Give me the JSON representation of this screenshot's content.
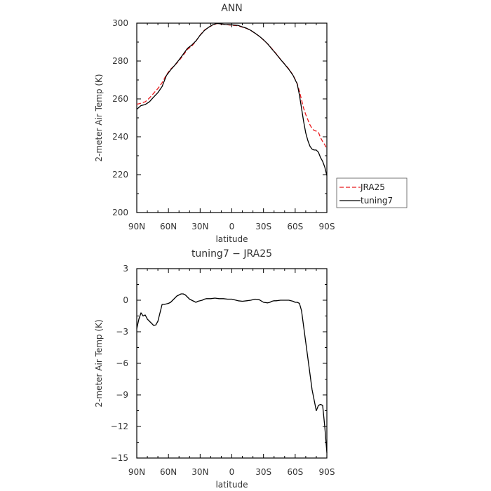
{
  "chart_data": [
    {
      "type": "line",
      "title": "ANN",
      "xlabel": "latitude",
      "ylabel": "2-meter Air Temp (K)",
      "xlim": [
        90,
        -90
      ],
      "ylim": [
        200,
        300
      ],
      "x_ticks": [
        90,
        60,
        30,
        0,
        -30,
        -60,
        -90
      ],
      "x_tick_labels": [
        "90N",
        "60N",
        "30N",
        "0",
        "30S",
        "60S",
        "90S"
      ],
      "y_ticks": [
        200,
        220,
        240,
        260,
        280,
        300
      ],
      "y_tick_labels": [
        "200",
        "220",
        "240",
        "260",
        "280",
        "300"
      ],
      "legend_position": "right",
      "series": [
        {
          "name": "JRA25",
          "color": "#e8191c",
          "dash": "dashed",
          "x": [
            90,
            86,
            82,
            78,
            74,
            70,
            66,
            62,
            58,
            54,
            50,
            46,
            42,
            38,
            34,
            30,
            26,
            22,
            18,
            14,
            10,
            6,
            2,
            -2,
            -6,
            -10,
            -14,
            -18,
            -22,
            -26,
            -30,
            -34,
            -38,
            -42,
            -46,
            -50,
            -54,
            -58,
            -62,
            -64,
            -66,
            -68,
            -70,
            -72,
            -74,
            -76,
            -78,
            -80,
            -82,
            -84,
            -86,
            -88,
            -90
          ],
          "values": [
            257.2,
            257.7,
            258.5,
            260.5,
            263.0,
            265.5,
            268.5,
            272.7,
            275.7,
            277.7,
            280.2,
            283.0,
            286.2,
            287.8,
            290.5,
            293.7,
            296.3,
            297.8,
            299.0,
            299.8,
            299.5,
            299.3,
            299.0,
            298.8,
            298.6,
            297.9,
            297.2,
            296.1,
            294.7,
            293.1,
            291.1,
            289.0,
            286.5,
            283.9,
            281.0,
            278.4,
            275.8,
            272.6,
            268.0,
            264.0,
            259.5,
            255.0,
            251.7,
            249.0,
            246.3,
            244.4,
            243.3,
            243.0,
            242.3,
            239.5,
            237.5,
            235.8,
            233.6
          ]
        },
        {
          "name": "tuning7",
          "color": "#000000",
          "dash": "solid",
          "x": [
            90,
            86,
            82,
            78,
            74,
            70,
            66,
            62,
            58,
            54,
            50,
            46,
            42,
            38,
            34,
            30,
            26,
            22,
            18,
            14,
            10,
            6,
            2,
            -2,
            -6,
            -10,
            -14,
            -18,
            -22,
            -26,
            -30,
            -34,
            -38,
            -42,
            -46,
            -50,
            -54,
            -58,
            -62,
            -64,
            -66,
            -68,
            -70,
            -72,
            -74,
            -76,
            -78,
            -80,
            -82,
            -84,
            -86,
            -88,
            -90
          ],
          "values": [
            254.5,
            256.5,
            257.0,
            258.5,
            261.0,
            263.3,
            266.5,
            272.3,
            275.3,
            277.8,
            280.6,
            283.6,
            286.7,
            288.4,
            290.6,
            293.6,
            296.1,
            297.8,
            299.2,
            299.9,
            299.6,
            299.3,
            299.2,
            299.0,
            298.8,
            298.0,
            297.3,
            296.2,
            294.7,
            293.1,
            291.2,
            289.0,
            286.3,
            283.7,
            280.9,
            278.3,
            275.6,
            272.4,
            267.8,
            262.0,
            255.0,
            248.0,
            242.0,
            238.0,
            235.0,
            233.5,
            233.0,
            233.0,
            231.8,
            229.0,
            227.0,
            224.0,
            219.5
          ]
        }
      ]
    },
    {
      "type": "line",
      "title": "tuning7 − JRA25",
      "xlabel": "latitude",
      "ylabel": "2-meter Air Temp (K)",
      "xlim": [
        90,
        -90
      ],
      "ylim": [
        -15,
        3
      ],
      "x_ticks": [
        90,
        60,
        30,
        0,
        -30,
        -60,
        -90
      ],
      "x_tick_labels": [
        "90N",
        "60N",
        "30N",
        "0",
        "30S",
        "60S",
        "90S"
      ],
      "y_ticks": [
        3,
        0,
        -3,
        -6,
        -9,
        -12,
        -15
      ],
      "y_tick_labels": [
        "3",
        "0",
        "−3",
        "−6",
        "−9",
        "−12",
        "−15"
      ],
      "series": [
        {
          "name": "tuning7 − JRA25",
          "color": "#000000",
          "x": [
            90,
            88,
            86,
            84,
            82,
            80,
            78,
            76,
            74,
            72,
            70,
            68,
            66,
            64,
            62,
            60,
            58,
            56,
            54,
            52,
            50,
            48,
            46,
            44,
            42,
            40,
            38,
            36,
            34,
            32,
            30,
            28,
            26,
            24,
            20,
            16,
            12,
            8,
            4,
            0,
            -2,
            -6,
            -10,
            -14,
            -18,
            -22,
            -26,
            -30,
            -34,
            -36,
            -38,
            -40,
            -42,
            -46,
            -50,
            -54,
            -58,
            -60,
            -62,
            -64,
            -66,
            -68,
            -70,
            -72,
            -74,
            -76,
            -78,
            -80,
            -82,
            -84,
            -86,
            -88,
            -90
          ],
          "values": [
            -2.7,
            -1.8,
            -1.2,
            -1.5,
            -1.4,
            -1.8,
            -2.0,
            -2.2,
            -2.4,
            -2.35,
            -2.0,
            -1.2,
            -0.4,
            -0.4,
            -0.35,
            -0.3,
            -0.2,
            0.0,
            0.2,
            0.4,
            0.5,
            0.6,
            0.6,
            0.5,
            0.3,
            0.1,
            0.0,
            -0.1,
            -0.2,
            -0.1,
            -0.05,
            0.0,
            0.1,
            0.15,
            0.15,
            0.2,
            0.15,
            0.15,
            0.1,
            0.1,
            0.05,
            -0.05,
            -0.1,
            -0.05,
            0.0,
            0.1,
            0.05,
            -0.2,
            -0.25,
            -0.2,
            -0.1,
            -0.05,
            -0.05,
            0.0,
            0.0,
            0.0,
            -0.1,
            -0.2,
            -0.2,
            -0.3,
            -1.0,
            -2.5,
            -4.0,
            -5.5,
            -7.0,
            -8.5,
            -9.5,
            -10.5,
            -10.0,
            -9.9,
            -10.0,
            -12.0,
            -14.5
          ]
        }
      ]
    }
  ]
}
